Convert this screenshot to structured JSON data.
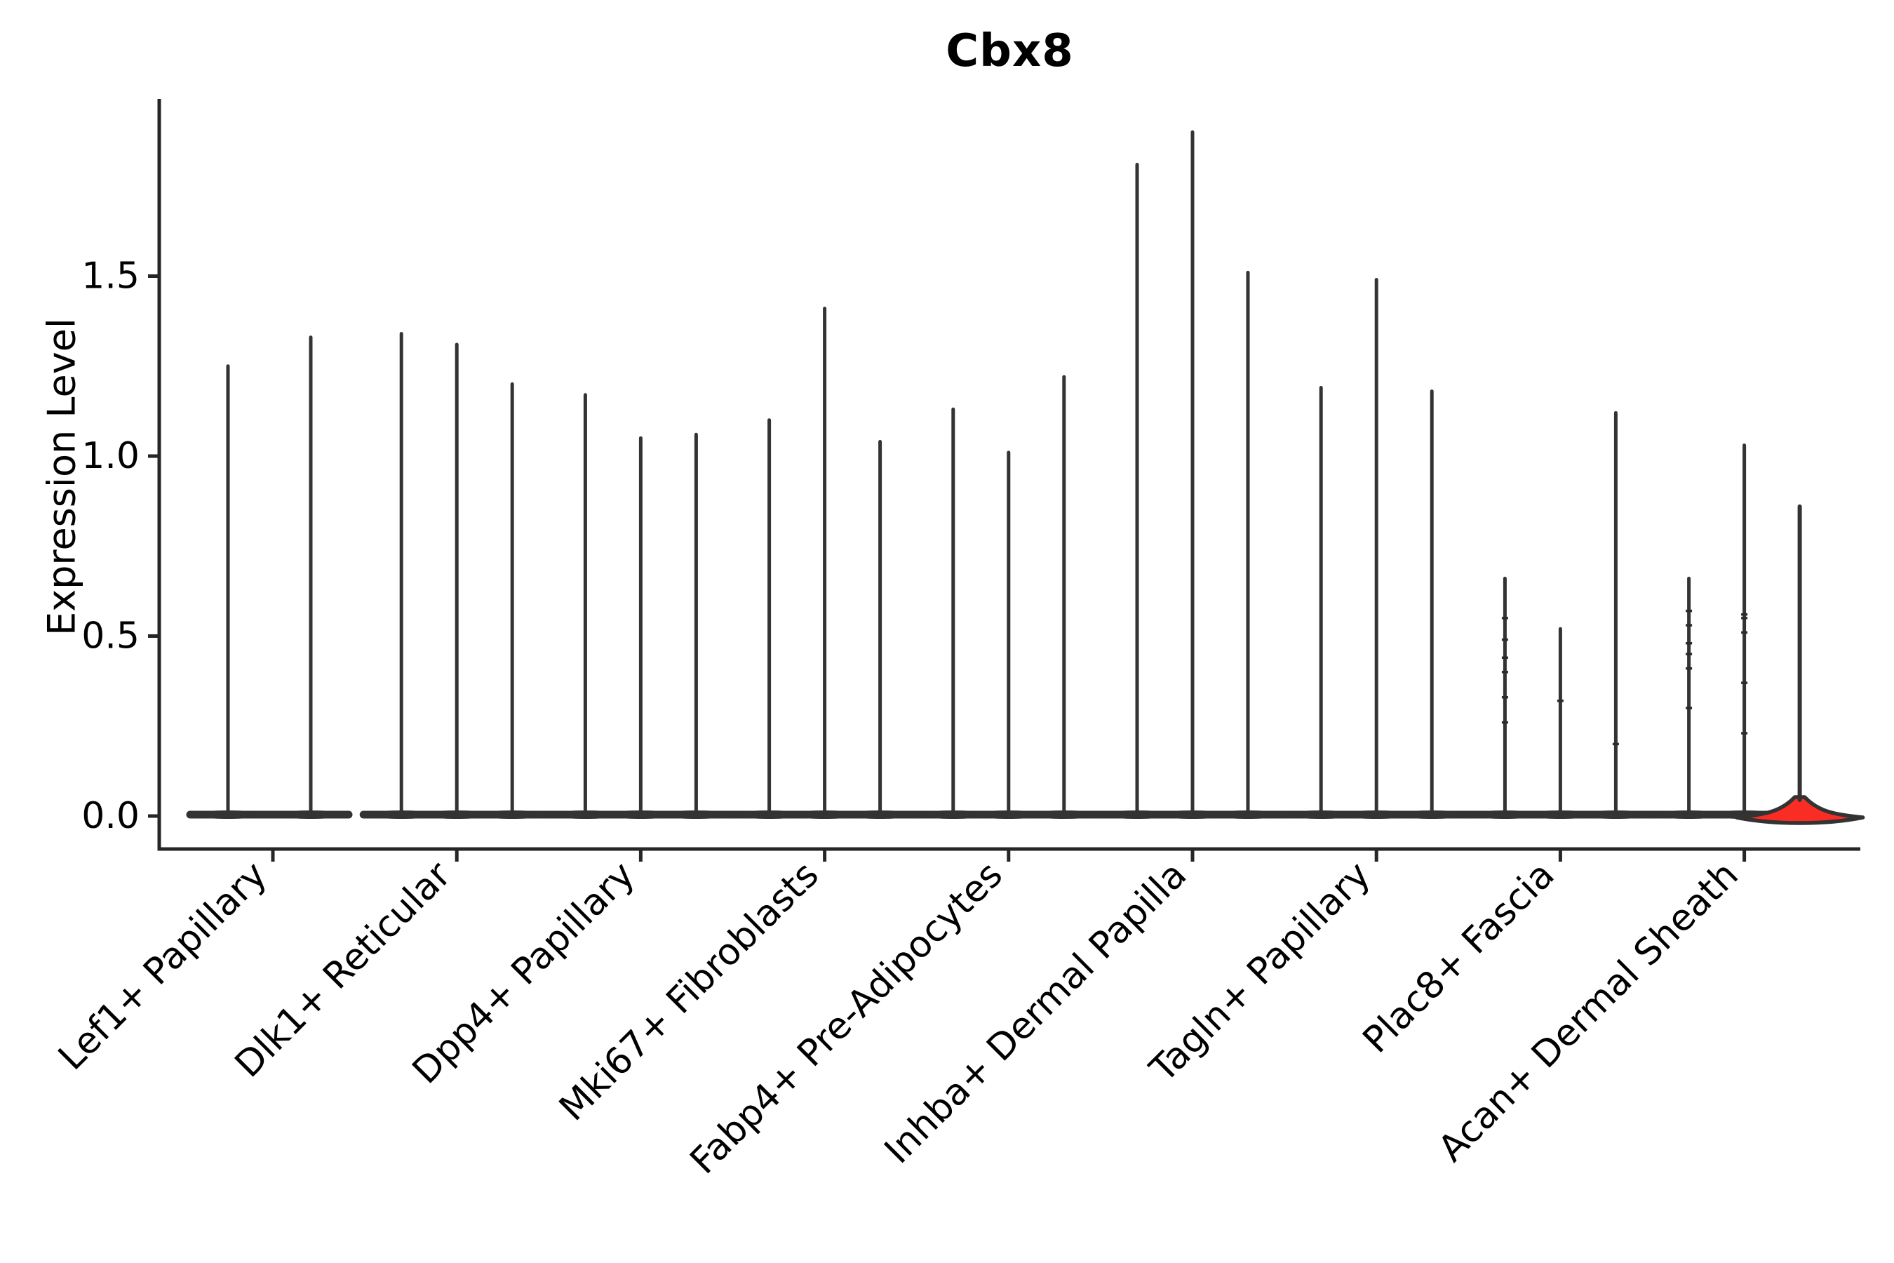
{
  "figure": {
    "title": "Cbx8"
  },
  "chart_data": {
    "type": "violin",
    "title": "Cbx8",
    "xlabel": "",
    "ylabel": "Expression Level",
    "ylim": [
      -0.09,
      2.0
    ],
    "yticks": [
      {
        "value": 0.0,
        "label": "0.0"
      },
      {
        "value": 0.5,
        "label": "0.5"
      },
      {
        "value": 1.0,
        "label": "1.0"
      },
      {
        "value": 1.5,
        "label": "1.5"
      }
    ],
    "grid": "off",
    "legend": "none",
    "colors": {
      "violin_edge": "#333333",
      "highlight_fill": "#fa2d25",
      "axis": "#262626",
      "text": "#000000"
    },
    "categories": [
      "Lef1+ Papillary",
      "Dlk1+ Reticular",
      "Dpp4+ Papillary",
      "Mki67+ Fibroblasts",
      "Fabp4+ Pre-Adipocytes",
      "Inhba+ Dermal Papilla",
      "Tagln+ Papillary",
      "Plac8+ Fascia",
      "Acan+ Dermal Sheath"
    ],
    "groups": [
      {
        "label": "Lef1+ Papillary",
        "violins": [
          {
            "max": 1.25,
            "color": "black"
          },
          {
            "max": 1.33,
            "color": "black"
          }
        ]
      },
      {
        "label": "Dlk1+ Reticular",
        "violins": [
          {
            "max": 1.34,
            "color": "black"
          },
          {
            "max": 1.31,
            "color": "black"
          },
          {
            "max": 1.2,
            "color": "black"
          }
        ]
      },
      {
        "label": "Dpp4+ Papillary",
        "violins": [
          {
            "max": 1.17,
            "color": "black"
          },
          {
            "max": 1.05,
            "color": "black"
          },
          {
            "max": 1.06,
            "color": "black"
          }
        ]
      },
      {
        "label": "Mki67+ Fibroblasts",
        "violins": [
          {
            "max": 1.1,
            "color": "black"
          },
          {
            "max": 1.41,
            "color": "black"
          },
          {
            "max": 1.04,
            "color": "black"
          }
        ]
      },
      {
        "label": "Fabp4+ Pre-Adipocytes",
        "violins": [
          {
            "max": 1.13,
            "color": "black"
          },
          {
            "max": 1.01,
            "color": "black"
          },
          {
            "max": 1.22,
            "color": "black"
          }
        ]
      },
      {
        "label": "Inhba+ Dermal Papilla",
        "violins": [
          {
            "max": 1.81,
            "color": "black"
          },
          {
            "max": 1.9,
            "color": "black"
          },
          {
            "max": 1.51,
            "color": "black"
          }
        ]
      },
      {
        "label": "Tagln+ Papillary",
        "violins": [
          {
            "max": 1.19,
            "color": "black"
          },
          {
            "max": 1.49,
            "color": "black"
          },
          {
            "max": 1.18,
            "color": "black"
          }
        ]
      },
      {
        "label": "Plac8+ Fascia",
        "violins": [
          {
            "max": 0.66,
            "color": "black",
            "dots": [
              0.55,
              0.49,
              0.44,
              0.4,
              0.33,
              0.26
            ]
          },
          {
            "max": 0.52,
            "color": "black",
            "dots": [
              0.32
            ]
          },
          {
            "max": 1.12,
            "color": "black",
            "dots": [
              0.2
            ]
          }
        ]
      },
      {
        "label": "Acan+ Dermal Sheath",
        "violins": [
          {
            "max": 0.66,
            "color": "black",
            "dots": [
              0.57,
              0.53,
              0.48,
              0.45,
              0.41,
              0.3
            ]
          },
          {
            "max": 1.03,
            "color": "black",
            "dots": [
              0.56,
              0.55,
              0.51,
              0.37,
              0.23
            ]
          },
          {
            "max": 0.86,
            "color": "red"
          }
        ]
      }
    ],
    "layout_hints": {
      "x_tick_rotation_deg": 45,
      "dodge_offsets_3": [
        -79,
        0,
        79
      ],
      "dodge_offsets_2": [
        -64,
        54
      ],
      "base_at_zero": true
    }
  }
}
